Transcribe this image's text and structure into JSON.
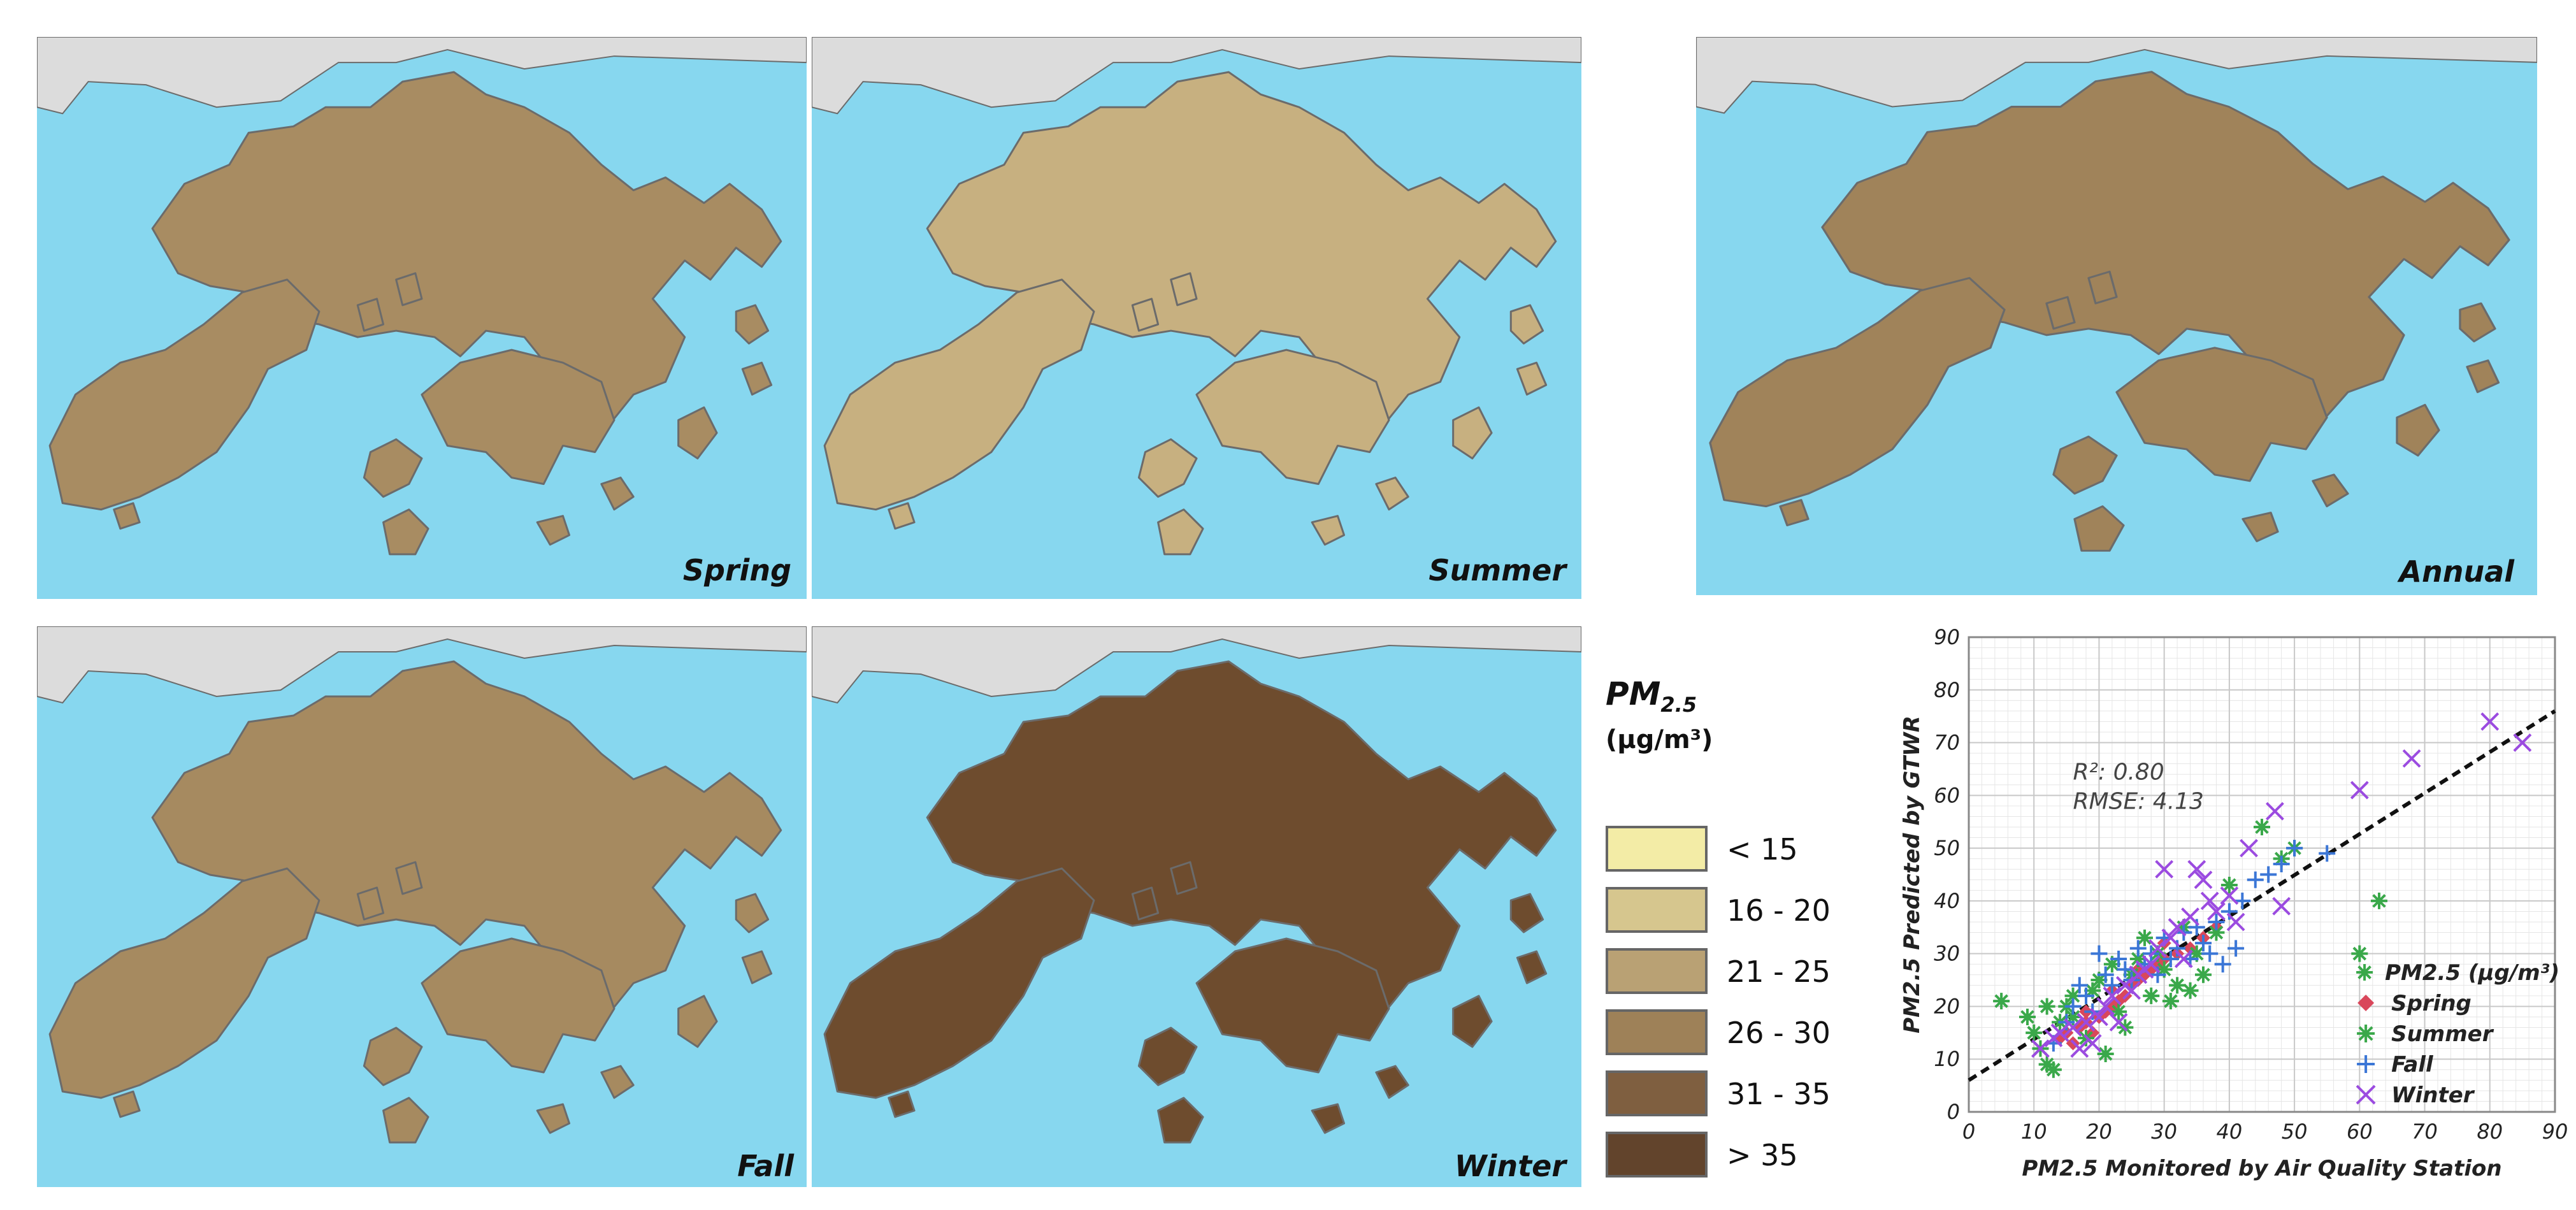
{
  "panels": {
    "spring": {
      "label": "Spring",
      "fill": "#a88c62"
    },
    "summer": {
      "label": "Summer",
      "fill": "#c7b080"
    },
    "fall": {
      "label": "Fall",
      "fill": "#a68a60"
    },
    "winter": {
      "label": "Winter",
      "fill": "#6e4c2e"
    },
    "annual": {
      "label": "Annual",
      "fill": "#a0835a"
    }
  },
  "colors": {
    "sea": "#87d7ef",
    "mainland": "#dcdcdc",
    "coast": "#6b6b6b"
  },
  "legend": {
    "title": "PM",
    "title_sub": "2.5",
    "unit": "(μg/m³)",
    "classes": [
      {
        "label": "< 15",
        "color": "#f3eca6"
      },
      {
        "label": "16 - 20",
        "color": "#d6c68e"
      },
      {
        "label": "21 - 25",
        "color": "#b9a174"
      },
      {
        "label": "26 - 30",
        "color": "#9e8158"
      },
      {
        "label": "31 - 35",
        "color": "#7f5f40"
      },
      {
        "label": "> 35",
        "color": "#62442c"
      }
    ]
  },
  "chart_data": {
    "type": "scatter",
    "xlabel": "PM2.5 Monitored by Air Quality Station",
    "ylabel": "PM2.5 Predicted by GTWR",
    "xlim": [
      0,
      90
    ],
    "ylim": [
      0,
      90
    ],
    "xticks": [
      "0",
      "10",
      "20",
      "30",
      "40",
      "50",
      "60",
      "70",
      "80",
      "90"
    ],
    "yticks": [
      "0",
      "10",
      "20",
      "30",
      "40",
      "50",
      "60",
      "70",
      "80",
      "90"
    ],
    "grid": true,
    "annotations": [
      "R²: 0.80",
      "RMSE: 4.13"
    ],
    "fit_line": {
      "x": [
        0,
        90
      ],
      "y": [
        6,
        76
      ]
    },
    "legend_title": "PM2.5 (μg/m³)",
    "legend_position": "bottom-right",
    "series": [
      {
        "name": "Spring",
        "marker": "diamond",
        "color": "#d9475b",
        "points": [
          [
            14,
            14
          ],
          [
            15,
            15
          ],
          [
            16,
            13
          ],
          [
            17,
            16
          ],
          [
            18,
            17
          ],
          [
            19,
            15
          ],
          [
            20,
            18
          ],
          [
            21,
            19
          ],
          [
            22,
            20
          ],
          [
            23,
            21
          ],
          [
            24,
            22
          ],
          [
            25,
            24
          ],
          [
            26,
            25
          ],
          [
            27,
            26
          ],
          [
            28,
            27
          ],
          [
            29,
            28
          ],
          [
            30,
            29
          ],
          [
            32,
            30
          ],
          [
            34,
            31
          ],
          [
            36,
            33
          ],
          [
            38,
            35
          ],
          [
            18,
            19
          ],
          [
            22,
            23
          ],
          [
            26,
            27
          ],
          [
            30,
            32
          ]
        ]
      },
      {
        "name": "Summer",
        "marker": "asterisk",
        "color": "#3aa84a",
        "points": [
          [
            5,
            21
          ],
          [
            9,
            18
          ],
          [
            10,
            15
          ],
          [
            11,
            12
          ],
          [
            12,
            9
          ],
          [
            13,
            8
          ],
          [
            14,
            17
          ],
          [
            15,
            20
          ],
          [
            16,
            22
          ],
          [
            18,
            14
          ],
          [
            20,
            25
          ],
          [
            21,
            11
          ],
          [
            22,
            28
          ],
          [
            24,
            16
          ],
          [
            25,
            26
          ],
          [
            26,
            29
          ],
          [
            27,
            33
          ],
          [
            28,
            22
          ],
          [
            30,
            27
          ],
          [
            32,
            24
          ],
          [
            33,
            35
          ],
          [
            35,
            30
          ],
          [
            36,
            26
          ],
          [
            38,
            34
          ],
          [
            40,
            43
          ],
          [
            45,
            54
          ],
          [
            48,
            48
          ],
          [
            50,
            50
          ],
          [
            60,
            30
          ],
          [
            63,
            40
          ],
          [
            12,
            20
          ],
          [
            16,
            18
          ],
          [
            19,
            23
          ],
          [
            23,
            19
          ],
          [
            29,
            30
          ],
          [
            31,
            21
          ],
          [
            34,
            23
          ]
        ]
      },
      {
        "name": "Fall",
        "marker": "plus",
        "color": "#3b76d6",
        "points": [
          [
            13,
            13
          ],
          [
            15,
            17
          ],
          [
            16,
            20
          ],
          [
            17,
            24
          ],
          [
            18,
            22
          ],
          [
            19,
            19
          ],
          [
            20,
            30
          ],
          [
            21,
            26
          ],
          [
            22,
            24
          ],
          [
            23,
            29
          ],
          [
            24,
            27
          ],
          [
            25,
            25
          ],
          [
            26,
            31
          ],
          [
            27,
            28
          ],
          [
            28,
            30
          ],
          [
            29,
            26
          ],
          [
            30,
            33
          ],
          [
            31,
            29
          ],
          [
            32,
            31
          ],
          [
            33,
            34
          ],
          [
            34,
            29
          ],
          [
            35,
            35
          ],
          [
            36,
            32
          ],
          [
            37,
            30
          ],
          [
            38,
            36
          ],
          [
            40,
            38
          ],
          [
            42,
            40
          ],
          [
            44,
            44
          ],
          [
            46,
            45
          ],
          [
            48,
            47
          ],
          [
            50,
            50
          ],
          [
            55,
            49
          ],
          [
            41,
            31
          ],
          [
            39,
            28
          ]
        ]
      },
      {
        "name": "Winter",
        "marker": "cross",
        "color": "#9b4be0",
        "points": [
          [
            11,
            12
          ],
          [
            13,
            14
          ],
          [
            14,
            15
          ],
          [
            16,
            16
          ],
          [
            17,
            12
          ],
          [
            18,
            17
          ],
          [
            20,
            18
          ],
          [
            21,
            20
          ],
          [
            22,
            22
          ],
          [
            24,
            24
          ],
          [
            25,
            23
          ],
          [
            26,
            26
          ],
          [
            27,
            27
          ],
          [
            28,
            28
          ],
          [
            29,
            31
          ],
          [
            30,
            46
          ],
          [
            31,
            33
          ],
          [
            32,
            35
          ],
          [
            33,
            29
          ],
          [
            34,
            37
          ],
          [
            35,
            46
          ],
          [
            36,
            44
          ],
          [
            37,
            40
          ],
          [
            38,
            38
          ],
          [
            40,
            41
          ],
          [
            43,
            50
          ],
          [
            47,
            57
          ],
          [
            48,
            39
          ],
          [
            60,
            61
          ],
          [
            68,
            67
          ],
          [
            80,
            74
          ],
          [
            85,
            70
          ],
          [
            19,
            13
          ],
          [
            23,
            17
          ],
          [
            41,
            36
          ]
        ]
      }
    ]
  }
}
